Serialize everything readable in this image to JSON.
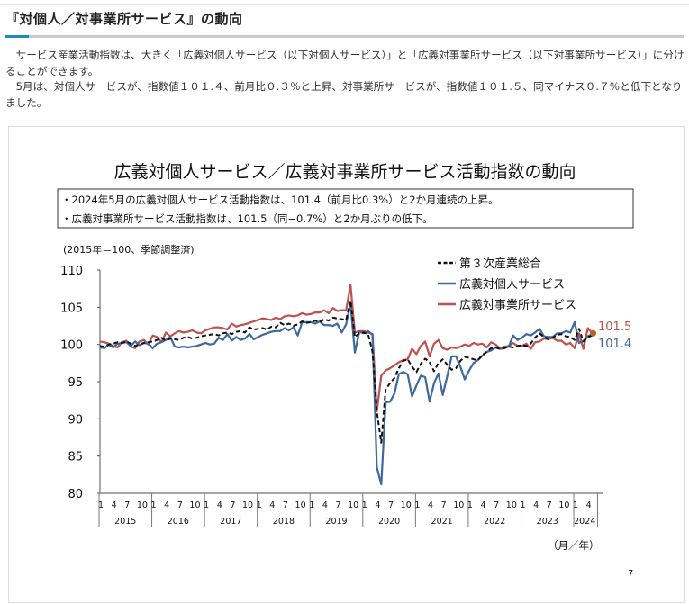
{
  "section": {
    "title": "『対個人／対事業所サービス』の動向",
    "paragraphs": [
      "サービス産業活動指数は、大きく「広義対個人サービス（以下対個人サービス）」と「広義対事業所サービス（以下対事業所サービス）」に分けることができます。",
      "5月は、対個人サービスが、指数値１０１.４、前月比０.３％と上昇、対事業所サービスが、指数値１０１.５、同マイナス０.７％と低下となりました。"
    ]
  },
  "chart_data": {
    "type": "line",
    "title": "広義対個人サービス／広義対事業所サービス活動指数の動向",
    "summary_box": [
      "・2024年5月の広義対個人サービス活動指数は、101.4（前月比0.3%）と2か月連続の上昇。",
      "・広義対事業所サービス活動指数は、101.5（同−0.7%）と2か月ぶりの低下。"
    ],
    "ylabel": "(2015年＝100、季節調整済)",
    "xlabel": "（月／年）",
    "ylim": [
      80,
      110
    ],
    "yticks": [
      "80",
      "85",
      "90",
      "95",
      "100",
      "105",
      "110"
    ],
    "x_start": "2015-01",
    "x_end": "2024-05",
    "month_ticks": [
      "1",
      "4",
      "7",
      "10"
    ],
    "years": [
      "2015",
      "2016",
      "2017",
      "2018",
      "2019",
      "2020",
      "2021",
      "2022",
      "2023",
      "2024"
    ],
    "legend_position": "top-right",
    "series": [
      {
        "name": "第３次産業総合",
        "color": "#111111",
        "dashed": true,
        "values": [
          99.8,
          99.7,
          100.0,
          100.1,
          100.3,
          100.2,
          100.4,
          100.1,
          99.8,
          100.0,
          100.2,
          100.3,
          100.4,
          100.6,
          100.9,
          100.5,
          100.8,
          100.7,
          100.6,
          100.9,
          101.0,
          100.8,
          100.9,
          101.1,
          101.2,
          101.3,
          101.4,
          101.2,
          101.5,
          101.6,
          101.4,
          101.7,
          101.8,
          101.6,
          102.3,
          102.0,
          102.1,
          102.2,
          102.0,
          102.4,
          102.3,
          102.9,
          102.6,
          102.8,
          102.5,
          102.7,
          103.1,
          102.9,
          103.0,
          103.2,
          103.0,
          103.4,
          103.2,
          103.6,
          103.5,
          103.4,
          103.3,
          105.9,
          101.0,
          101.5,
          101.6,
          101.4,
          99.0,
          91.0,
          86.8,
          94.0,
          94.8,
          95.5,
          96.8,
          97.8,
          98.0,
          97.0,
          96.3,
          97.4,
          98.1,
          97.6,
          96.4,
          97.5,
          98.0,
          97.3,
          96.6,
          96.8,
          97.8,
          98.3,
          98.2,
          98.0,
          97.9,
          98.6,
          99.0,
          99.5,
          99.6,
          99.4,
          99.5,
          99.7,
          99.6,
          99.8,
          99.9,
          99.8,
          100.1,
          100.9,
          101.5,
          101.0,
          100.7,
          100.9,
          101.3,
          101.4,
          101.1,
          101.0,
          100.6,
          102.1,
          100.4,
          101.0,
          101.2
        ]
      },
      {
        "name": "広義対個人サービス",
        "color": "#3b6a9e",
        "dashed": false,
        "end_label": "101.4",
        "values": [
          99.6,
          99.5,
          100.0,
          99.6,
          100.1,
          100.2,
          100.3,
          99.8,
          100.4,
          99.9,
          100.2,
          100.1,
          99.5,
          100.1,
          100.3,
          100.6,
          101.0,
          99.7,
          99.6,
          99.7,
          99.6,
          99.7,
          99.8,
          100.0,
          100.2,
          100.0,
          100.1,
          100.9,
          100.6,
          101.4,
          100.5,
          101.0,
          100.6,
          100.8,
          101.4,
          100.7,
          101.0,
          101.3,
          101.5,
          101.7,
          101.8,
          101.8,
          102.2,
          101.9,
          102.3,
          101.2,
          103.0,
          103.0,
          103.0,
          102.8,
          103.1,
          102.6,
          102.6,
          102.5,
          102.8,
          101.6,
          102.7,
          105.5,
          98.9,
          101.7,
          101.5,
          101.8,
          101.3,
          83.5,
          81.2,
          92.2,
          92.3,
          93.4,
          96.0,
          96.3,
          96.0,
          93.0,
          94.5,
          95.8,
          95.6,
          92.3,
          94.8,
          96.1,
          93.2,
          95.7,
          98.4,
          98.4,
          97.0,
          95.3,
          96.5,
          97.5,
          97.9,
          98.5,
          99.0,
          99.2,
          99.6,
          99.4,
          99.5,
          99.7,
          101.2,
          100.6,
          100.9,
          101.4,
          101.2,
          101.6,
          102.1,
          101.1,
          101.0,
          101.0,
          101.5,
          101.5,
          101.8,
          101.6,
          103.0,
          100.2,
          100.5,
          101.1,
          101.4
        ]
      },
      {
        "name": "広義対事業所サービス",
        "color": "#c0504d",
        "dashed": false,
        "end_label": "101.5",
        "values": [
          100.4,
          100.3,
          100.1,
          99.8,
          99.6,
          100.3,
          100.5,
          99.7,
          99.5,
          100.4,
          100.6,
          100.0,
          101.2,
          101.0,
          100.3,
          101.6,
          101.1,
          101.5,
          101.8,
          101.6,
          101.7,
          101.9,
          101.6,
          101.5,
          101.9,
          102.1,
          102.3,
          102.3,
          102.2,
          102.0,
          102.8,
          102.4,
          102.6,
          102.7,
          102.9,
          103.1,
          103.3,
          103.5,
          103.4,
          103.3,
          103.6,
          103.4,
          103.8,
          103.9,
          103.8,
          103.9,
          104.2,
          104.0,
          104.1,
          104.3,
          104.3,
          104.6,
          104.2,
          104.9,
          104.5,
          104.6,
          104.6,
          108.0,
          101.6,
          101.8,
          101.8,
          101.6,
          101.4,
          91.0,
          95.8,
          96.5,
          96.8,
          97.2,
          97.6,
          97.9,
          98.0,
          99.4,
          98.7,
          99.8,
          100.4,
          98.4,
          100.1,
          100.6,
          99.5,
          99.3,
          99.6,
          99.5,
          99.7,
          100.0,
          99.8,
          100.2,
          100.0,
          100.1,
          99.6,
          100.3,
          100.0,
          99.5,
          99.7,
          99.8,
          100.2,
          99.8,
          99.8,
          100.1,
          99.4,
          100.3,
          100.4,
          100.8,
          100.7,
          100.9,
          100.5,
          100.5,
          100.0,
          100.2,
          99.5,
          101.5,
          99.4,
          102.2,
          101.5
        ]
      }
    ],
    "page_number": "7"
  }
}
